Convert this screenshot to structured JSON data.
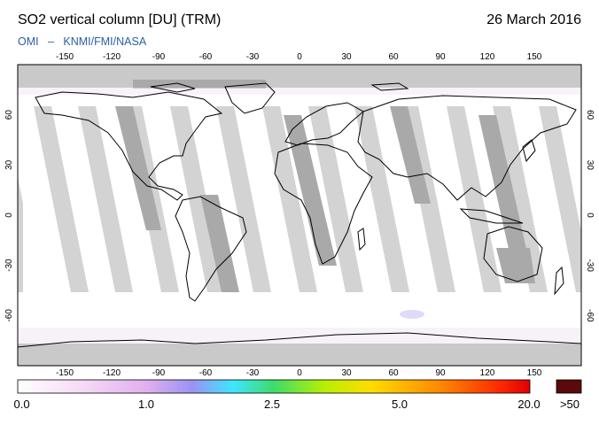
{
  "header": {
    "title": "SO2 vertical column [DU] (TRM)",
    "date": "26 March 2016",
    "credit_left": "OMI",
    "credit_sep": "–",
    "credit_right": "KNMI/FMI/NASA"
  },
  "map": {
    "lon_range": [
      -180,
      180
    ],
    "lat_range": [
      -90,
      90
    ],
    "lon_ticks": [
      -150,
      -120,
      -90,
      -60,
      -30,
      0,
      30,
      60,
      90,
      120,
      150
    ],
    "lat_ticks": [
      60,
      30,
      0,
      -30,
      -60
    ],
    "lon_tick_labels": [
      "-150",
      "-120",
      "-90",
      "-60",
      "-30",
      "0",
      "30",
      "60",
      "90",
      "120",
      "150"
    ],
    "lat_tick_labels": [
      "60",
      "30",
      "0",
      "-30",
      "-60"
    ],
    "no_data_color": "#c9c9c9",
    "orbit_gap_color": "#d2d2d2",
    "coast_color": "#000000"
  },
  "colorbar": {
    "labels": [
      "0.0",
      "1.0",
      "2.5",
      "5.0",
      "20.0"
    ],
    "overflow_label": ">50",
    "overflow_color": "#5a0a0a",
    "stops": [
      "#ffffff",
      "#f4d8f4",
      "#d9a4ee",
      "#8a8ef5",
      "#35e8ff",
      "#40e070",
      "#b4f000",
      "#ffd800",
      "#ff8a00",
      "#ff2a00",
      "#e00000"
    ]
  }
}
